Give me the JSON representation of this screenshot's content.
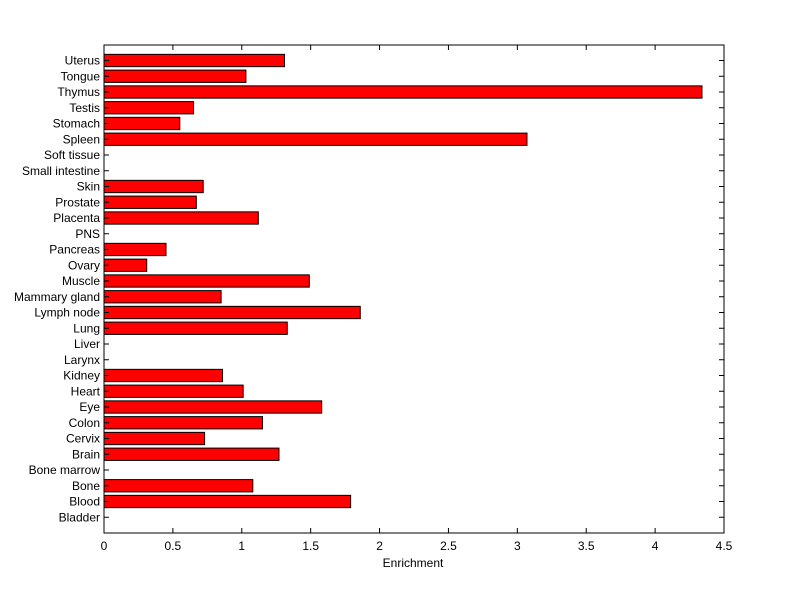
{
  "chart_data": {
    "type": "bar",
    "orientation": "horizontal",
    "title": "",
    "xlabel": "Enrichment",
    "ylabel": "",
    "xlim": [
      0,
      4.5
    ],
    "xticks": [
      0,
      0.5,
      1,
      1.5,
      2,
      2.5,
      3,
      3.5,
      4,
      4.5
    ],
    "xtick_labels": [
      "0",
      "0.5",
      "1",
      "1.5",
      "2",
      "2.5",
      "3",
      "3.5",
      "4",
      "4.5"
    ],
    "grid": false,
    "legend": "none",
    "bar_color": "#ff0000",
    "bar_edge_color": "#000000",
    "categories": [
      "Uterus",
      "Tongue",
      "Thymus",
      "Testis",
      "Stomach",
      "Spleen",
      "Soft tissue",
      "Small intestine",
      "Skin",
      "Prostate",
      "Placenta",
      "PNS",
      "Pancreas",
      "Ovary",
      "Muscle",
      "Mammary gland",
      "Lymph node",
      "Lung",
      "Liver",
      "Larynx",
      "Kidney",
      "Heart",
      "Eye",
      "Colon",
      "Cervix",
      "Brain",
      "Bone marrow",
      "Bone",
      "Blood",
      "Bladder"
    ],
    "values": [
      1.31,
      1.03,
      4.34,
      0.65,
      0.55,
      3.07,
      0,
      0,
      0.72,
      0.67,
      1.12,
      0,
      0.45,
      0.31,
      1.49,
      0.85,
      1.86,
      1.33,
      0,
      0,
      0.86,
      1.01,
      1.58,
      1.15,
      0.73,
      1.27,
      0,
      1.08,
      1.79,
      0
    ]
  }
}
